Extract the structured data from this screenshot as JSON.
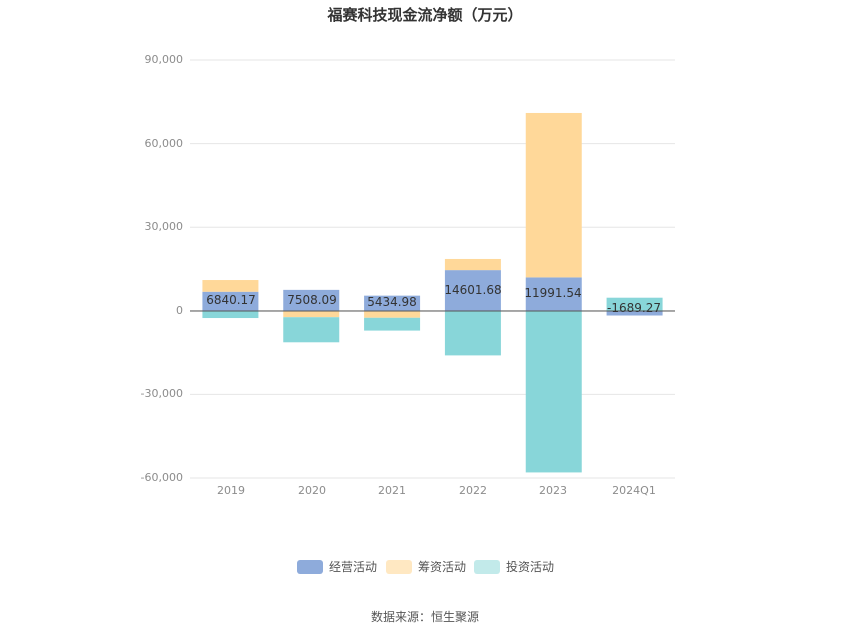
{
  "chart_data": {
    "type": "bar",
    "stacked": true,
    "title": "福赛科技现金流净额（万元）",
    "categories": [
      "2019",
      "2020",
      "2021",
      "2022",
      "2023",
      "2024Q1"
    ],
    "series": [
      {
        "name": "经营活动",
        "color": "#8eabdb",
        "values": [
          6840.17,
          7508.09,
          5434.98,
          14601.68,
          11991.54,
          -1689.27
        ]
      },
      {
        "name": "筹资活动",
        "color": "#ffd899",
        "values": [
          4200,
          -2300,
          -2500,
          4000,
          59000,
          0
        ]
      },
      {
        "name": "投资活动",
        "color": "#88d6d9",
        "values": [
          -2600,
          -9000,
          -4600,
          -16000,
          -58000,
          4700
        ]
      }
    ],
    "data_labels": [
      "6840.17",
      "7508.09",
      "5434.98",
      "14601.68",
      "11991.54",
      "-1689.27"
    ],
    "y_ticks": [
      "90,000",
      "60,000",
      "30,000",
      "0",
      "-30,000",
      "-60,000"
    ],
    "ylim": [
      -60000,
      90000
    ],
    "grid": true,
    "legend_position": "bottom"
  },
  "legend": {
    "items": [
      "经营活动",
      "筹资活动",
      "投资活动"
    ]
  },
  "source": "数据来源：恒生聚源"
}
